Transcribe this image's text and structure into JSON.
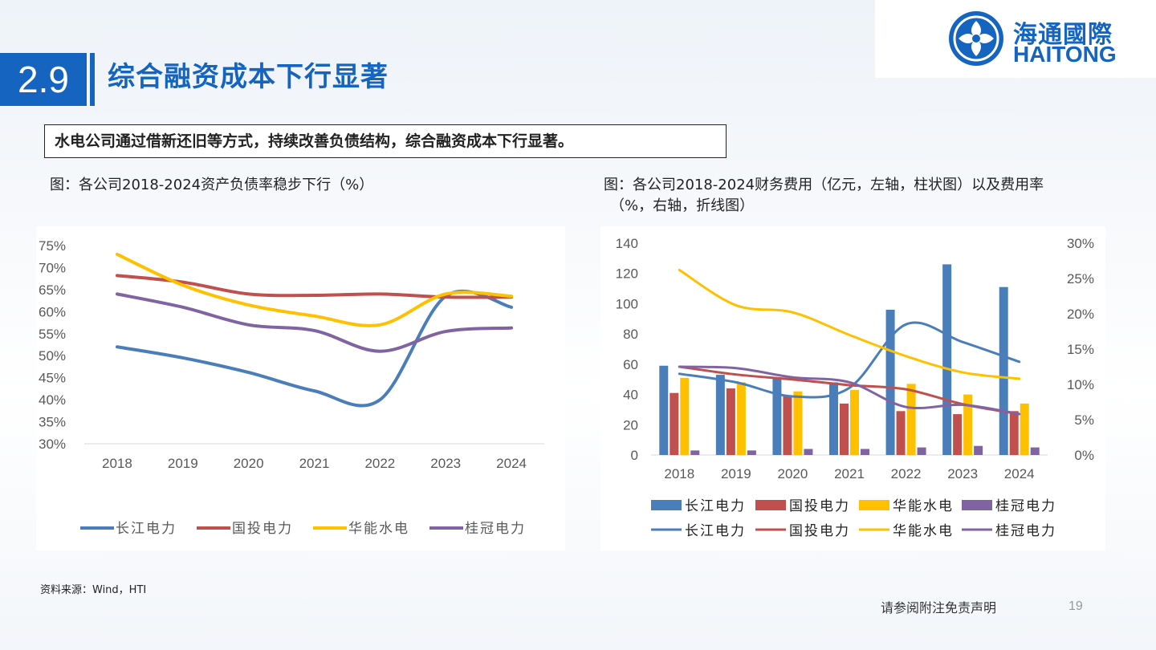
{
  "header": {
    "section_number": "2.9",
    "title": "综合融资成本下行显著",
    "logo_cn": "海通國際",
    "logo_en": "HAITONG"
  },
  "summary": "水电公司通过借新还旧等方式，持续改善负债结构，综合融资成本下行显著。",
  "left_caption": "图：各公司2018-2024资产负债率稳步下行（%）",
  "right_caption_line1": "图：各公司2018-2024财务费用（亿元，左轴，柱状图）以及费用率",
  "right_caption_line2": "（%，右轴，折线图）",
  "source": "资料来源：Wind，HTI",
  "disclaimer": "请参阅附注免责声明",
  "page_number": "19",
  "colors": {
    "accent": "#1565c0",
    "changjiang": "#4a7ebb",
    "guotou": "#c0504d",
    "huaneng": "#ffc000",
    "guiguan": "#8064a2"
  },
  "chart_data": [
    {
      "type": "line",
      "categories": [
        "2018",
        "2019",
        "2020",
        "2021",
        "2022",
        "2023",
        "2024"
      ],
      "ylim": [
        30,
        75
      ],
      "yticks": [
        "30%",
        "35%",
        "40%",
        "45%",
        "50%",
        "55%",
        "60%",
        "65%",
        "70%",
        "75%"
      ],
      "legend_position": "bottom",
      "series": [
        {
          "name": "长江电力",
          "color": "#4a7ebb",
          "values": [
            52.0,
            49.5,
            46.2,
            42.0,
            40.0,
            63.5,
            61.0
          ]
        },
        {
          "name": "国投电力",
          "color": "#c0504d",
          "values": [
            68.2,
            66.7,
            64.0,
            63.7,
            64.0,
            63.3,
            63.3
          ]
        },
        {
          "name": "华能水电",
          "color": "#ffc000",
          "values": [
            73.0,
            66.0,
            61.5,
            59.0,
            57.0,
            64.0,
            63.5
          ]
        },
        {
          "name": "桂冠电力",
          "color": "#8064a2",
          "values": [
            64.0,
            61.0,
            57.0,
            55.7,
            51.0,
            55.5,
            56.3
          ]
        }
      ]
    },
    {
      "type": "bar+line",
      "categories": [
        "2018",
        "2019",
        "2020",
        "2021",
        "2022",
        "2023",
        "2024"
      ],
      "ylim_left": [
        0,
        140
      ],
      "yticks_left": [
        "0",
        "20",
        "40",
        "60",
        "80",
        "100",
        "120",
        "140"
      ],
      "ylim_right": [
        0,
        30
      ],
      "yticks_right": [
        "0%",
        "5%",
        "10%",
        "15%",
        "20%",
        "25%",
        "30%"
      ],
      "legend_position": "bottom",
      "bar_series": [
        {
          "name": "长江电力",
          "color": "#4a7ebb",
          "values": [
            59,
            53,
            51,
            48,
            96,
            126,
            111
          ]
        },
        {
          "name": "国投电力",
          "color": "#c0504d",
          "values": [
            41,
            44,
            39,
            34,
            29,
            27,
            29
          ]
        },
        {
          "name": "华能水电",
          "color": "#ffc000",
          "values": [
            51,
            48,
            42,
            43,
            47,
            40,
            34
          ]
        },
        {
          "name": "桂冠电力",
          "color": "#8064a2",
          "values": [
            3,
            3,
            4,
            4,
            5,
            6,
            5
          ]
        }
      ],
      "line_series": [
        {
          "name": "长江电力",
          "color": "#4a7ebb",
          "values": [
            11.5,
            10.3,
            8.3,
            9.5,
            18.5,
            16.0,
            13.2
          ]
        },
        {
          "name": "国投电力",
          "color": "#c0504d",
          "values": [
            12.5,
            11.4,
            10.7,
            9.9,
            9.3,
            7.2,
            5.8
          ]
        },
        {
          "name": "华能水电",
          "color": "#ffc000",
          "values": [
            26.2,
            21.2,
            20.2,
            17.0,
            14.0,
            11.7,
            10.8
          ]
        },
        {
          "name": "桂冠电力",
          "color": "#8064a2",
          "values": [
            12.5,
            12.3,
            11.0,
            10.3,
            6.8,
            7.1,
            5.8
          ]
        }
      ]
    }
  ]
}
